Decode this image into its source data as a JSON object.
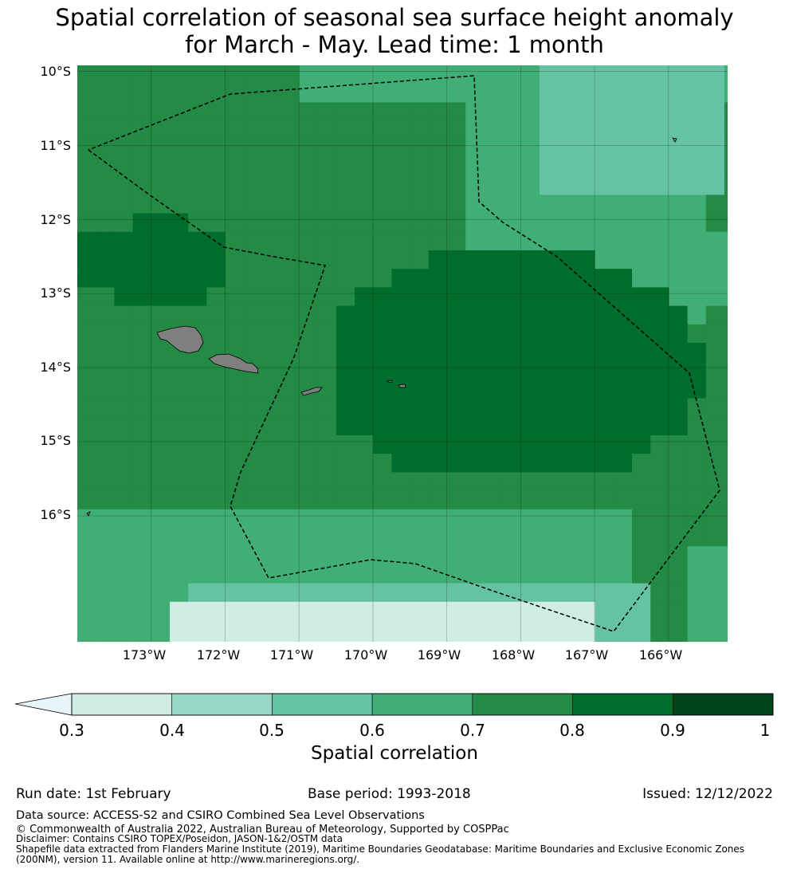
{
  "title": {
    "line1": "Spatial correlation of seasonal sea surface height anomaly",
    "line2": "for March - May. Lead time: 1 month"
  },
  "map": {
    "lat_labels": [
      "10°S",
      "11°S",
      "12°S",
      "13°S",
      "14°S",
      "15°S",
      "16°S"
    ],
    "lon_labels": [
      "173°W",
      "172°W",
      "171°W",
      "170°W",
      "169°W",
      "168°W",
      "167°W",
      "166°W"
    ],
    "extent": {
      "lon_min": -174.0,
      "lon_max": -165.2,
      "lat_min": -17.7,
      "lat_max": -9.92
    }
  },
  "colorbar": {
    "boundaries": [
      "0.3",
      "0.4",
      "0.5",
      "0.6",
      "0.7",
      "0.8",
      "0.9",
      "1"
    ],
    "colors": [
      "#cfece5",
      "#99d7c8",
      "#66c2a4",
      "#41ae76",
      "#238b45",
      "#006d2c",
      "#00441b"
    ],
    "extend_color": "#e5f5f9",
    "label": "Spatial correlation"
  },
  "info": {
    "run_date": "Run date: 1st February",
    "base_period": "Base period: 1993-2018",
    "issued": "Issued: 12/12/2022"
  },
  "data_source": "Data source: ACCESS-S2 and CSIRO Combined Sea Level Observations",
  "copyright": "© Commonwealth of Australia 2022, Australian Bureau of Meteorology, Supported by COSPPac",
  "disclaimer": "Disclaimer: Contains CSIRO TOPEX/Poseidon, JASON-1&2/OSTM data",
  "shapefile": "Shapefile data extracted from Flanders Marine Institute (2019), Maritime Boundaries Geodatabase: Maritime Boundaries and Exclusive Economic Zones (200NM), version 11. Available online at http://www.marineregions.org/."
}
